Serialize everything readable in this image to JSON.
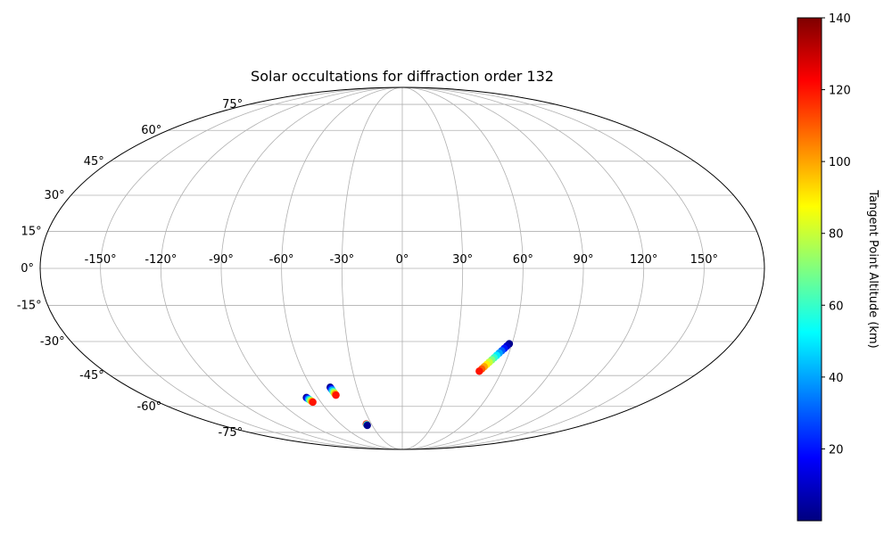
{
  "chart_data": {
    "type": "scatter",
    "projection": "mollweide",
    "title": "Solar occultations for diffraction order 132",
    "longitude_ticks": [
      "-150°",
      "-120°",
      "-90°",
      "-60°",
      "-30°",
      "0°",
      "30°",
      "60°",
      "90°",
      "120°",
      "150°"
    ],
    "latitude_ticks": [
      "-75°",
      "-60°",
      "-45°",
      "-30°",
      "-15°",
      "0°",
      "15°",
      "30°",
      "45°",
      "60°",
      "75°"
    ],
    "grid": true,
    "colorbar": {
      "label": "Tangent Point Altitude (km)",
      "colormap": "jet",
      "range": [
        0,
        140
      ],
      "ticks": [
        "20",
        "40",
        "60",
        "80",
        "100",
        "120",
        "140"
      ]
    },
    "series": [
      {
        "points": [
          {
            "lon": -68.0,
            "lat": -55.5,
            "alt": 2
          },
          {
            "lon": -67.7,
            "lat": -55.9,
            "alt": 20
          },
          {
            "lon": -67.3,
            "lat": -56.3,
            "alt": 40
          },
          {
            "lon": -67.0,
            "lat": -56.7,
            "alt": 60
          },
          {
            "lon": -66.6,
            "lat": -57.1,
            "alt": 80
          },
          {
            "lon": -66.3,
            "lat": -57.5,
            "alt": 100
          },
          {
            "lon": -66.0,
            "lat": -57.8,
            "alt": 120
          }
        ]
      },
      {
        "points": [
          {
            "lon": -47.5,
            "lat": -50.5,
            "alt": 2
          },
          {
            "lon": -47.3,
            "lat": -51.2,
            "alt": 20
          },
          {
            "lon": -47.1,
            "lat": -51.8,
            "alt": 40
          },
          {
            "lon": -46.9,
            "lat": -52.5,
            "alt": 60
          },
          {
            "lon": -46.6,
            "lat": -53.1,
            "alt": 80
          },
          {
            "lon": -46.4,
            "lat": -53.8,
            "alt": 100
          },
          {
            "lon": -46.2,
            "lat": -54.3,
            "alt": 120
          }
        ]
      },
      {
        "points": [
          {
            "lon": -35.0,
            "lat": -69.8,
            "alt": 120
          },
          {
            "lon": -35.0,
            "lat": -70.2,
            "alt": 60
          },
          {
            "lon": -35.0,
            "lat": -70.6,
            "alt": 2
          }
        ]
      },
      {
        "points": [
          {
            "lon": 58.5,
            "lat": -31.0,
            "alt": 2
          },
          {
            "lon": 57.5,
            "lat": -32.0,
            "alt": 10
          },
          {
            "lon": 56.5,
            "lat": -33.0,
            "alt": 20
          },
          {
            "lon": 55.5,
            "lat": -34.0,
            "alt": 30
          },
          {
            "lon": 54.5,
            "lat": -35.0,
            "alt": 40
          },
          {
            "lon": 53.5,
            "lat": -36.0,
            "alt": 50
          },
          {
            "lon": 52.5,
            "lat": -37.0,
            "alt": 60
          },
          {
            "lon": 51.5,
            "lat": -38.0,
            "alt": 70
          },
          {
            "lon": 50.5,
            "lat": -39.0,
            "alt": 80
          },
          {
            "lon": 49.5,
            "lat": -40.0,
            "alt": 90
          },
          {
            "lon": 48.5,
            "lat": -41.0,
            "alt": 100
          },
          {
            "lon": 47.5,
            "lat": -42.0,
            "alt": 110
          },
          {
            "lon": 46.5,
            "lat": -43.0,
            "alt": 120
          }
        ]
      }
    ]
  }
}
